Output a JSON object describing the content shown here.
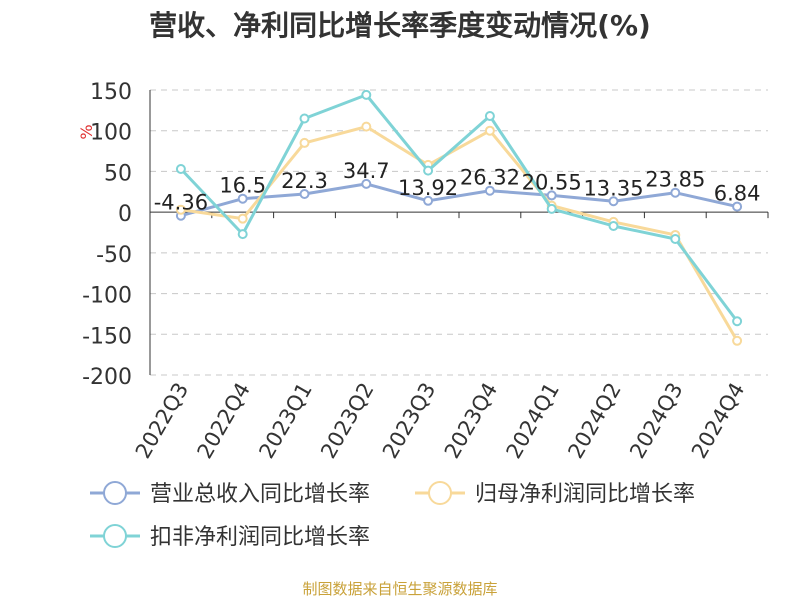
{
  "chart_data": {
    "type": "line",
    "title": "营收、净利同比增长率季度变动情况(%)",
    "ylabel": "%",
    "ylim": [
      -200,
      150
    ],
    "yticks": [
      150,
      100,
      50,
      0,
      -50,
      -100,
      -150,
      -200
    ],
    "categories": [
      "2022Q3",
      "2022Q4",
      "2023Q1",
      "2023Q2",
      "2023Q3",
      "2023Q4",
      "2024Q1",
      "2024Q2",
      "2024Q3",
      "2024Q4"
    ],
    "grid": true,
    "legend_position": "bottom",
    "series": [
      {
        "name": "营业总收入同比增长率",
        "color": "#8fa8d6",
        "values": [
          -4.36,
          16.5,
          22.3,
          34.7,
          13.92,
          26.32,
          20.55,
          13.35,
          23.85,
          6.84
        ],
        "labels": [
          "-4.36",
          "16.5",
          "22.3",
          "34.7",
          "13.92",
          "26.32",
          "20.55",
          "13.35",
          "23.85",
          "6.84"
        ]
      },
      {
        "name": "归母净利润同比增长率",
        "color": "#f8d99a",
        "values": [
          3,
          -8,
          85,
          105,
          58,
          100,
          8,
          -12,
          -28,
          -158
        ]
      },
      {
        "name": "扣非净利润同比增长率",
        "color": "#7fd3d6",
        "values": [
          53,
          -27,
          115,
          144,
          51,
          118,
          4,
          -17,
          -33,
          -134
        ]
      }
    ]
  },
  "footer": {
    "source": "制图数据来自恒生聚源数据库"
  }
}
